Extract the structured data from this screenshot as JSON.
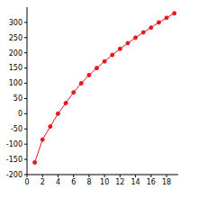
{
  "chart_data": {
    "type": "line",
    "x": [
      1,
      2,
      3,
      4,
      5,
      6,
      7,
      8,
      9,
      10,
      11,
      12,
      13,
      14,
      15,
      16,
      17,
      18,
      19
    ],
    "values": [
      -160,
      -85,
      -42,
      0,
      35,
      70,
      100,
      127,
      150,
      172,
      193,
      213,
      232,
      250,
      267,
      283,
      300,
      315,
      330
    ],
    "color": "#e8161b",
    "marker": "circle",
    "xlim": [
      0,
      19.5
    ],
    "xticks": [
      0,
      2,
      4,
      6,
      8,
      10,
      12,
      14,
      16,
      18
    ],
    "ylim": [
      -200,
      350
    ],
    "yticks": [
      -200,
      -150,
      -100,
      -50,
      0,
      50,
      100,
      150,
      200,
      250,
      300
    ],
    "grid": false
  }
}
